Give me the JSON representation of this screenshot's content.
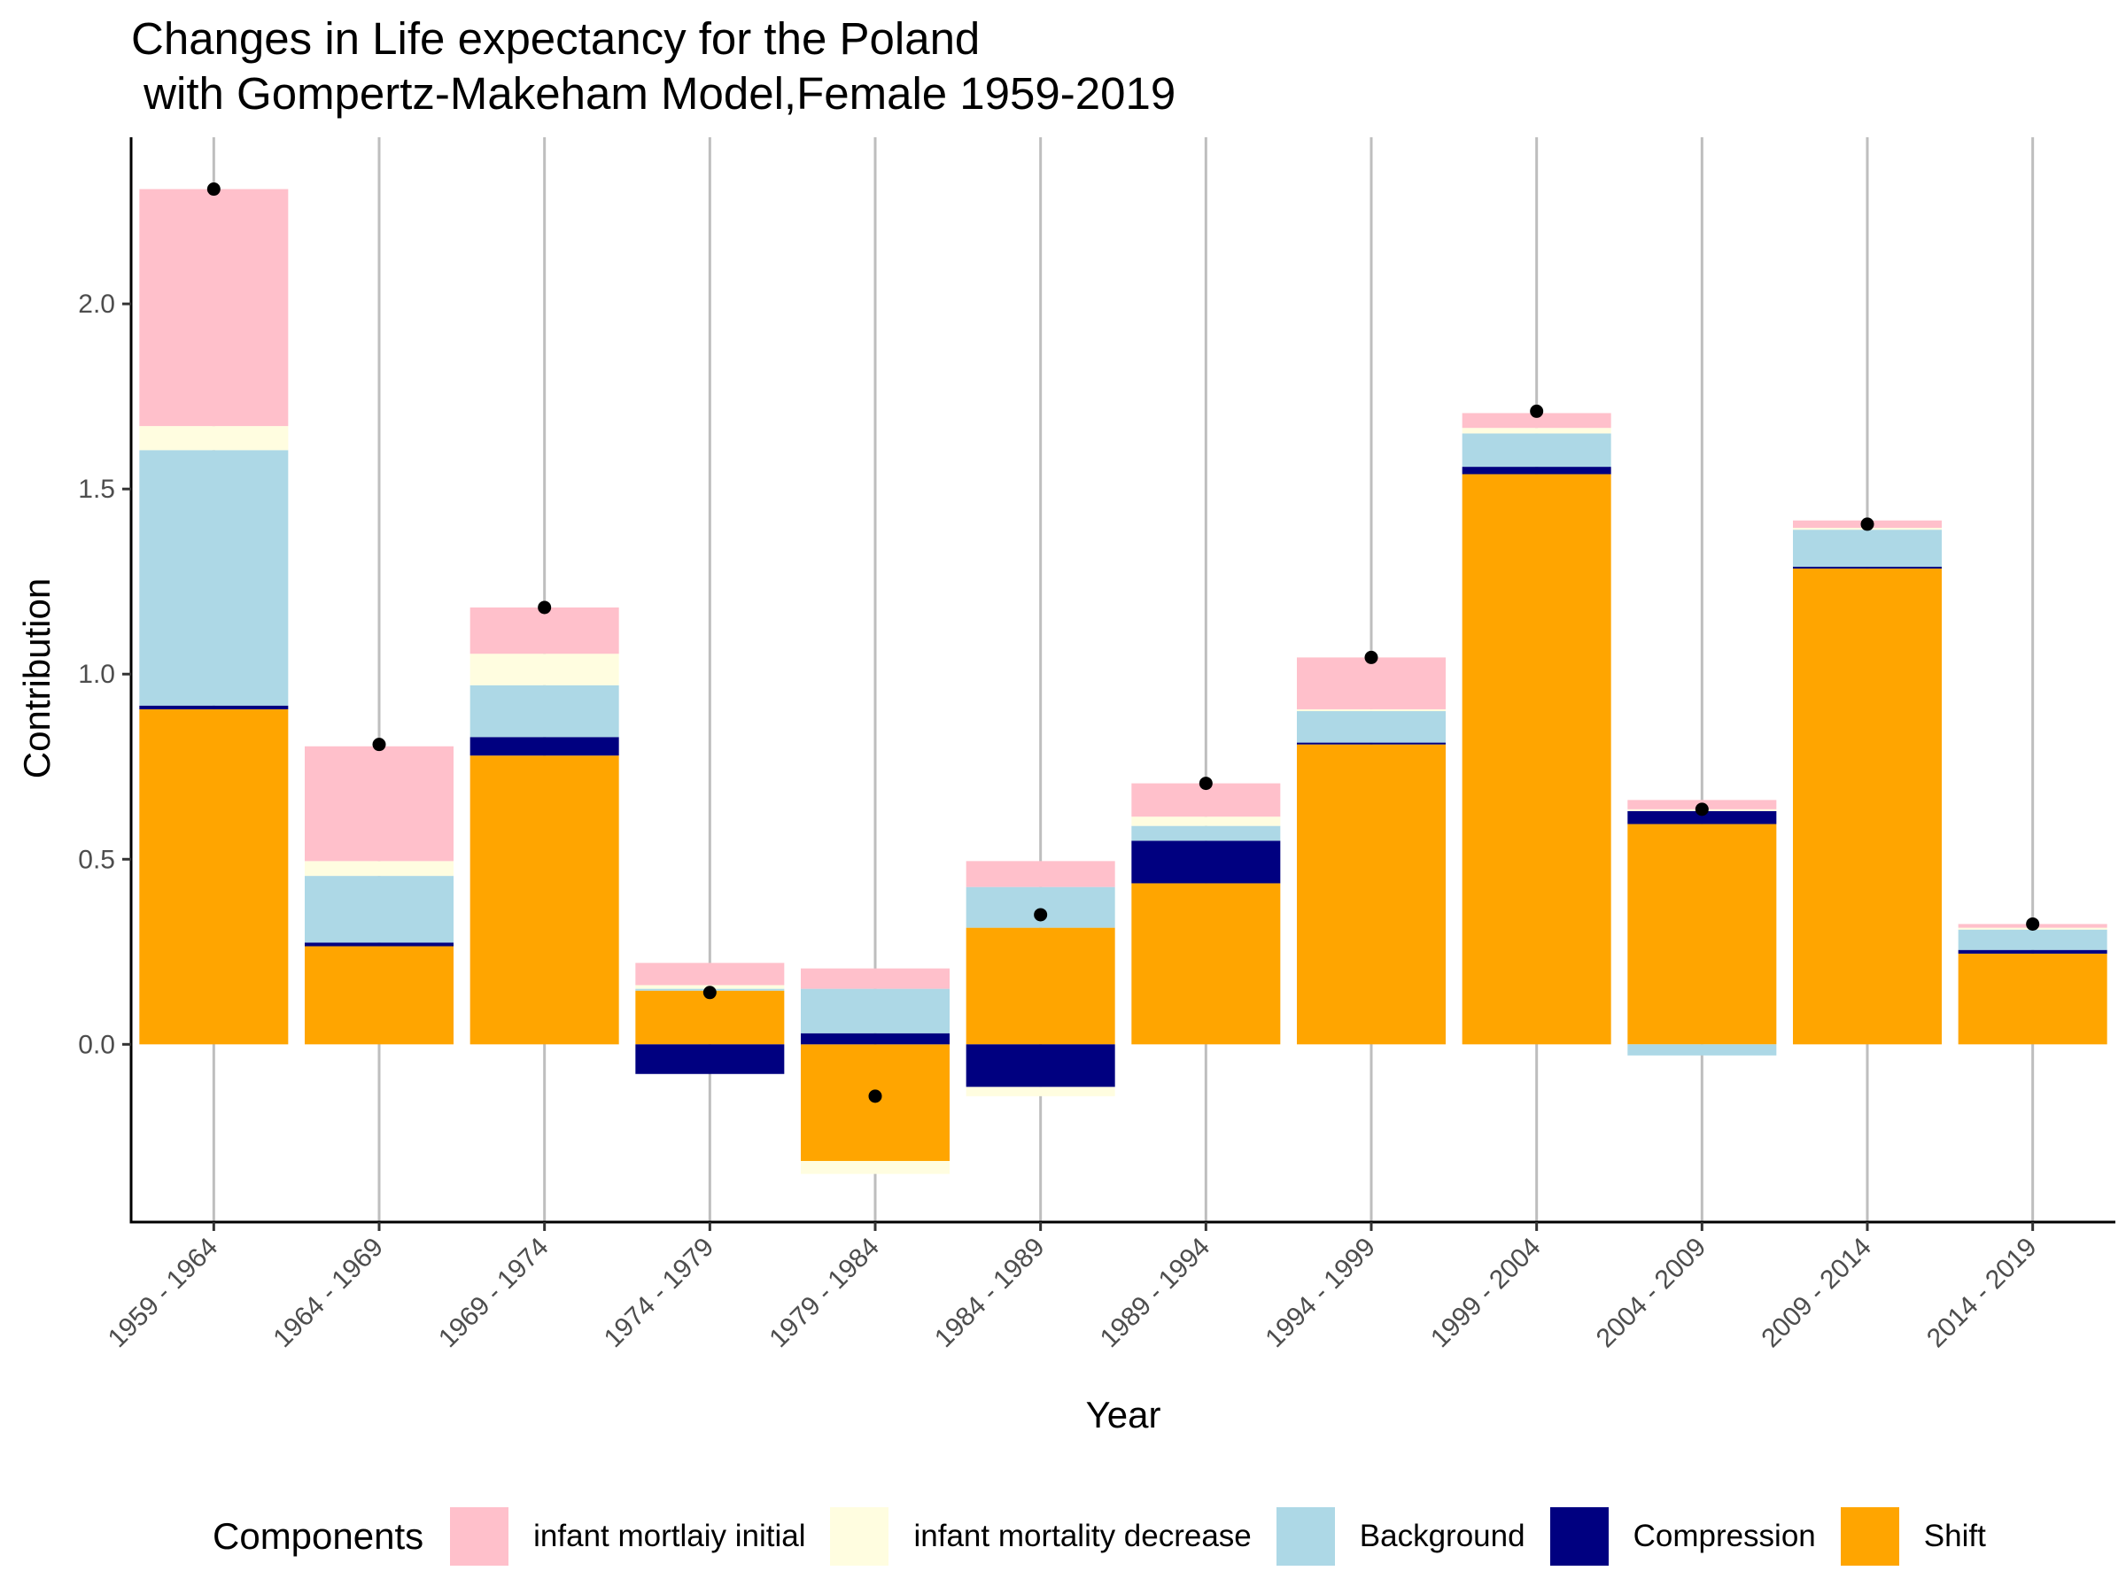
{
  "title": {
    "line1": "Changes in Life expectancy for the Poland",
    "line2": " with Gompertz-Makeham Model,Female 1959-2019"
  },
  "chart_data": {
    "type": "bar",
    "stacked": true,
    "title": "Changes in Life expectancy for the Poland with Gompertz-Makeham Model,Female 1959-2019",
    "xlabel": "Year",
    "ylabel": "Contribution",
    "ylim": [
      -0.48,
      2.45
    ],
    "yticks": [
      "0.0",
      "0.5",
      "1.0",
      "1.5",
      "2.0"
    ],
    "grid": "vertical",
    "legend_position": "bottom",
    "legend_title": "Components",
    "categories": [
      "1959 - 1964",
      "1964 - 1969",
      "1969 - 1974",
      "1974 - 1979",
      "1979 - 1984",
      "1984 - 1989",
      "1989 - 1994",
      "1994 - 1999",
      "1999 - 2004",
      "2004 - 2009",
      "2009 - 2014",
      "2014 - 2019"
    ],
    "series": [
      {
        "name": "Shift",
        "color": "#FFA500",
        "values": [
          0.905,
          0.265,
          0.78,
          0.145,
          -0.315,
          0.315,
          0.435,
          0.81,
          1.54,
          0.595,
          1.285,
          0.245
        ]
      },
      {
        "name": "Compression",
        "color": "#000080",
        "values": [
          0.01,
          0.01,
          0.05,
          -0.08,
          0.03,
          -0.115,
          0.115,
          0.005,
          0.02,
          0.035,
          0.005,
          0.01
        ]
      },
      {
        "name": "Background",
        "color": "#ADD8E6",
        "values": [
          0.69,
          0.18,
          0.14,
          0.005,
          0.12,
          0.11,
          0.04,
          0.085,
          0.09,
          -0.03,
          0.1,
          0.055
        ]
      },
      {
        "name": "infant mortality decrease",
        "color": "#FFFDE0",
        "values": [
          0.065,
          0.04,
          0.085,
          0.01,
          -0.035,
          -0.025,
          0.025,
          0.005,
          0.015,
          0.005,
          0.005,
          0.005
        ]
      },
      {
        "name": "infant mortlaiy initial",
        "color": "#FFC0CB",
        "values": [
          0.64,
          0.31,
          0.125,
          0.06,
          0.055,
          0.07,
          0.09,
          0.14,
          0.04,
          0.025,
          0.02,
          0.01
        ]
      }
    ],
    "totals": [
      2.31,
      0.81,
      1.18,
      0.14,
      -0.14,
      0.35,
      0.705,
      1.045,
      1.71,
      0.635,
      1.405,
      0.325
    ]
  },
  "legend": {
    "title": "Components",
    "items": [
      {
        "label": "infant mortlaiy initial",
        "color": "#FFC0CB"
      },
      {
        "label": "infant mortality decrease",
        "color": "#FFFDE0"
      },
      {
        "label": "Background",
        "color": "#ADD8E6"
      },
      {
        "label": "Compression",
        "color": "#000080"
      },
      {
        "label": "Shift",
        "color": "#FFA500"
      }
    ]
  }
}
